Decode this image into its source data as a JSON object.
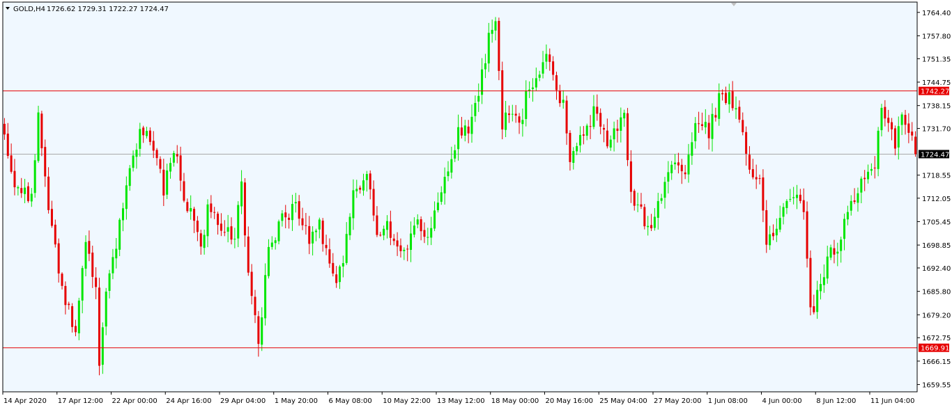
{
  "header": {
    "symbol": "GOLD,H4",
    "ohlc": "1726.62 1729.31 1722.27 1724.47"
  },
  "colors": {
    "background": "#F0F8FF",
    "frame": "#000000",
    "bull": "#00E600",
    "bear": "#E60000",
    "hline": "#E60000",
    "current_line": "#A9A9A9"
  },
  "chart_data": {
    "type": "candlestick",
    "symbol": "GOLD",
    "timeframe": "H4",
    "ylim": [
      1657.5,
      1767.3
    ],
    "yticks": [
      {
        "value": 1764.4,
        "label": "1764.40"
      },
      {
        "value": 1757.8,
        "label": "1757.80"
      },
      {
        "value": 1751.35,
        "label": "1751.35"
      },
      {
        "value": 1744.75,
        "label": "1744.75"
      },
      {
        "value": 1738.15,
        "label": "1738.15"
      },
      {
        "value": 1731.7,
        "label": "1731.70"
      },
      {
        "value": 1718.55,
        "label": "1718.55"
      },
      {
        "value": 1712.05,
        "label": "1712.05"
      },
      {
        "value": 1705.45,
        "label": "1705.45"
      },
      {
        "value": 1698.85,
        "label": "1698.85"
      },
      {
        "value": 1692.4,
        "label": "1692.40"
      },
      {
        "value": 1685.8,
        "label": "1685.80"
      },
      {
        "value": 1679.2,
        "label": "1679.20"
      },
      {
        "value": 1672.75,
        "label": "1672.75"
      },
      {
        "value": 1666.15,
        "label": "1666.15"
      },
      {
        "value": 1659.55,
        "label": "1659.55"
      }
    ],
    "xticks": [
      {
        "index": 0,
        "label": "14 Apr 2020"
      },
      {
        "index": 16,
        "label": "17 Apr 12:00"
      },
      {
        "index": 32,
        "label": "22 Apr 00:00"
      },
      {
        "index": 48,
        "label": "24 Apr 16:00"
      },
      {
        "index": 64,
        "label": "29 Apr 04:00"
      },
      {
        "index": 80,
        "label": "1 May 20:00"
      },
      {
        "index": 96,
        "label": "6 May 08:00"
      },
      {
        "index": 112,
        "label": "10 May 22:00"
      },
      {
        "index": 128,
        "label": "13 May 12:00"
      },
      {
        "index": 144,
        "label": "18 May 00:00"
      },
      {
        "index": 160,
        "label": "20 May 16:00"
      },
      {
        "index": 176,
        "label": "25 May 04:00"
      },
      {
        "index": 192,
        "label": "27 May 20:00"
      },
      {
        "index": 208,
        "label": "1 Jun 08:00"
      },
      {
        "index": 224,
        "label": "4 Jun 00:00"
      },
      {
        "index": 240,
        "label": "8 Jun 12:00"
      },
      {
        "index": 256,
        "label": "11 Jun 04:00"
      }
    ],
    "hlines": [
      {
        "value": 1742.27,
        "label": "1742.27"
      },
      {
        "value": 1669.91,
        "label": "1669.91"
      }
    ],
    "current_price": {
      "value": 1724.47,
      "label": "1724.47"
    },
    "close_path": [
      [
        0,
        1730
      ],
      [
        3,
        1716
      ],
      [
        8,
        1712
      ],
      [
        10,
        1736
      ],
      [
        13,
        1710
      ],
      [
        16,
        1692
      ],
      [
        18,
        1682
      ],
      [
        21,
        1676
      ],
      [
        24,
        1698
      ],
      [
        27,
        1688
      ],
      [
        28,
        1664
      ],
      [
        30,
        1686
      ],
      [
        33,
        1700
      ],
      [
        36,
        1714
      ],
      [
        40,
        1732
      ],
      [
        44,
        1727
      ],
      [
        47,
        1714
      ],
      [
        50,
        1727
      ],
      [
        53,
        1712
      ],
      [
        56,
        1705
      ],
      [
        58,
        1697
      ],
      [
        60,
        1709
      ],
      [
        64,
        1704
      ],
      [
        68,
        1702
      ],
      [
        70,
        1715
      ],
      [
        72,
        1690
      ],
      [
        75,
        1672
      ],
      [
        78,
        1698
      ],
      [
        82,
        1706
      ],
      [
        86,
        1710
      ],
      [
        90,
        1700
      ],
      [
        93,
        1705
      ],
      [
        96,
        1693
      ],
      [
        98,
        1687
      ],
      [
        100,
        1695
      ],
      [
        103,
        1715
      ],
      [
        107,
        1718
      ],
      [
        110,
        1702
      ],
      [
        113,
        1706
      ],
      [
        116,
        1697
      ],
      [
        119,
        1700
      ],
      [
        122,
        1706
      ],
      [
        125,
        1702
      ],
      [
        128,
        1712
      ],
      [
        131,
        1718
      ],
      [
        134,
        1732
      ],
      [
        137,
        1731
      ],
      [
        140,
        1742
      ],
      [
        143,
        1757
      ],
      [
        145,
        1764
      ],
      [
        147,
        1733
      ],
      [
        150,
        1738
      ],
      [
        152,
        1732
      ],
      [
        155,
        1744
      ],
      [
        158,
        1748
      ],
      [
        160,
        1751
      ],
      [
        162,
        1746
      ],
      [
        165,
        1738
      ],
      [
        167,
        1722
      ],
      [
        171,
        1730
      ],
      [
        174,
        1736
      ],
      [
        178,
        1728
      ],
      [
        181,
        1732
      ],
      [
        183,
        1736
      ],
      [
        185,
        1713
      ],
      [
        188,
        1708
      ],
      [
        191,
        1702
      ],
      [
        193,
        1711
      ],
      [
        197,
        1722
      ],
      [
        201,
        1719
      ],
      [
        205,
        1735
      ],
      [
        208,
        1731
      ],
      [
        211,
        1740
      ],
      [
        214,
        1740
      ],
      [
        217,
        1736
      ],
      [
        220,
        1722
      ],
      [
        223,
        1716
      ],
      [
        225,
        1698
      ],
      [
        228,
        1704
      ],
      [
        230,
        1710
      ],
      [
        233,
        1714
      ],
      [
        236,
        1708
      ],
      [
        238,
        1680
      ],
      [
        240,
        1684
      ],
      [
        243,
        1696
      ],
      [
        246,
        1698
      ],
      [
        249,
        1707
      ],
      [
        252,
        1714
      ],
      [
        255,
        1718
      ],
      [
        257,
        1721
      ],
      [
        259,
        1739
      ],
      [
        261,
        1733
      ],
      [
        263,
        1728
      ],
      [
        265,
        1736
      ],
      [
        268,
        1729
      ],
      [
        269,
        1724.47
      ]
    ]
  }
}
